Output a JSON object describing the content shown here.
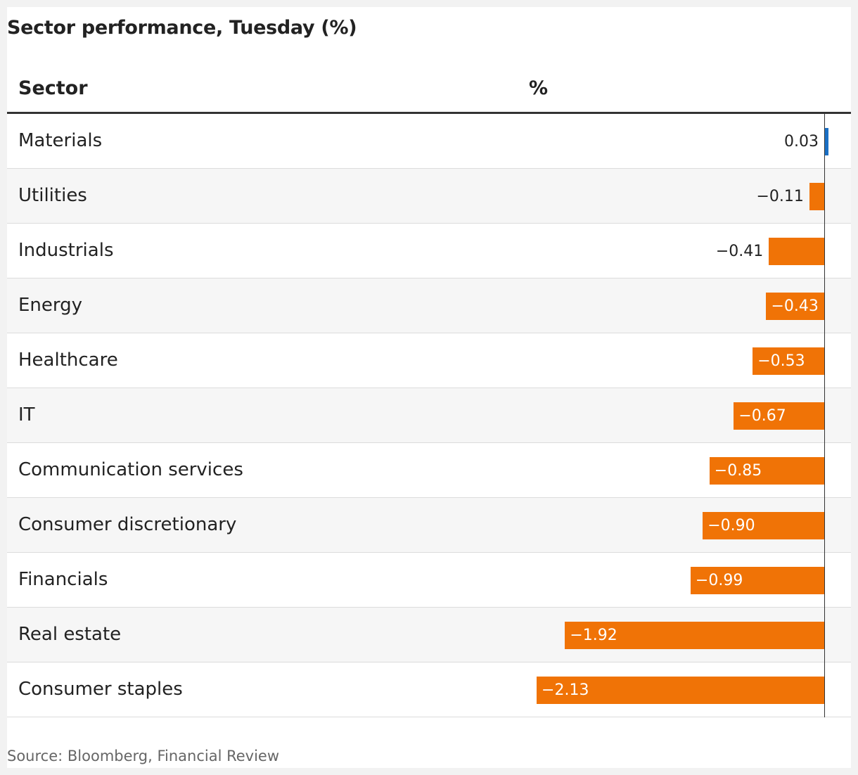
{
  "title": "Sector performance, Tuesday (%)",
  "columns": {
    "sector": "Sector",
    "value": "%"
  },
  "source": "Source: Bloomberg, Financial Review",
  "colors": {
    "positive": "#1a6fc4",
    "negative": "#f07306",
    "label_inside": "#ffffff",
    "label_outside": "#222222"
  },
  "chart_data": {
    "type": "bar",
    "orientation": "horizontal",
    "categories": [
      "Materials",
      "Utilities",
      "Industrials",
      "Energy",
      "Healthcare",
      "IT",
      "Communication services",
      "Consumer discretionary",
      "Financials",
      "Real estate",
      "Consumer staples"
    ],
    "values": [
      0.03,
      -0.11,
      -0.41,
      -0.43,
      -0.53,
      -0.67,
      -0.85,
      -0.9,
      -0.99,
      -1.92,
      -2.13
    ],
    "value_labels": [
      "0.03",
      "−0.11",
      "−0.41",
      "−0.43",
      "−0.53",
      "−0.67",
      "−0.85",
      "−0.90",
      "−0.99",
      "−1.92",
      "−2.13"
    ],
    "xlim": [
      -2.13,
      0.03
    ],
    "grid": false
  }
}
